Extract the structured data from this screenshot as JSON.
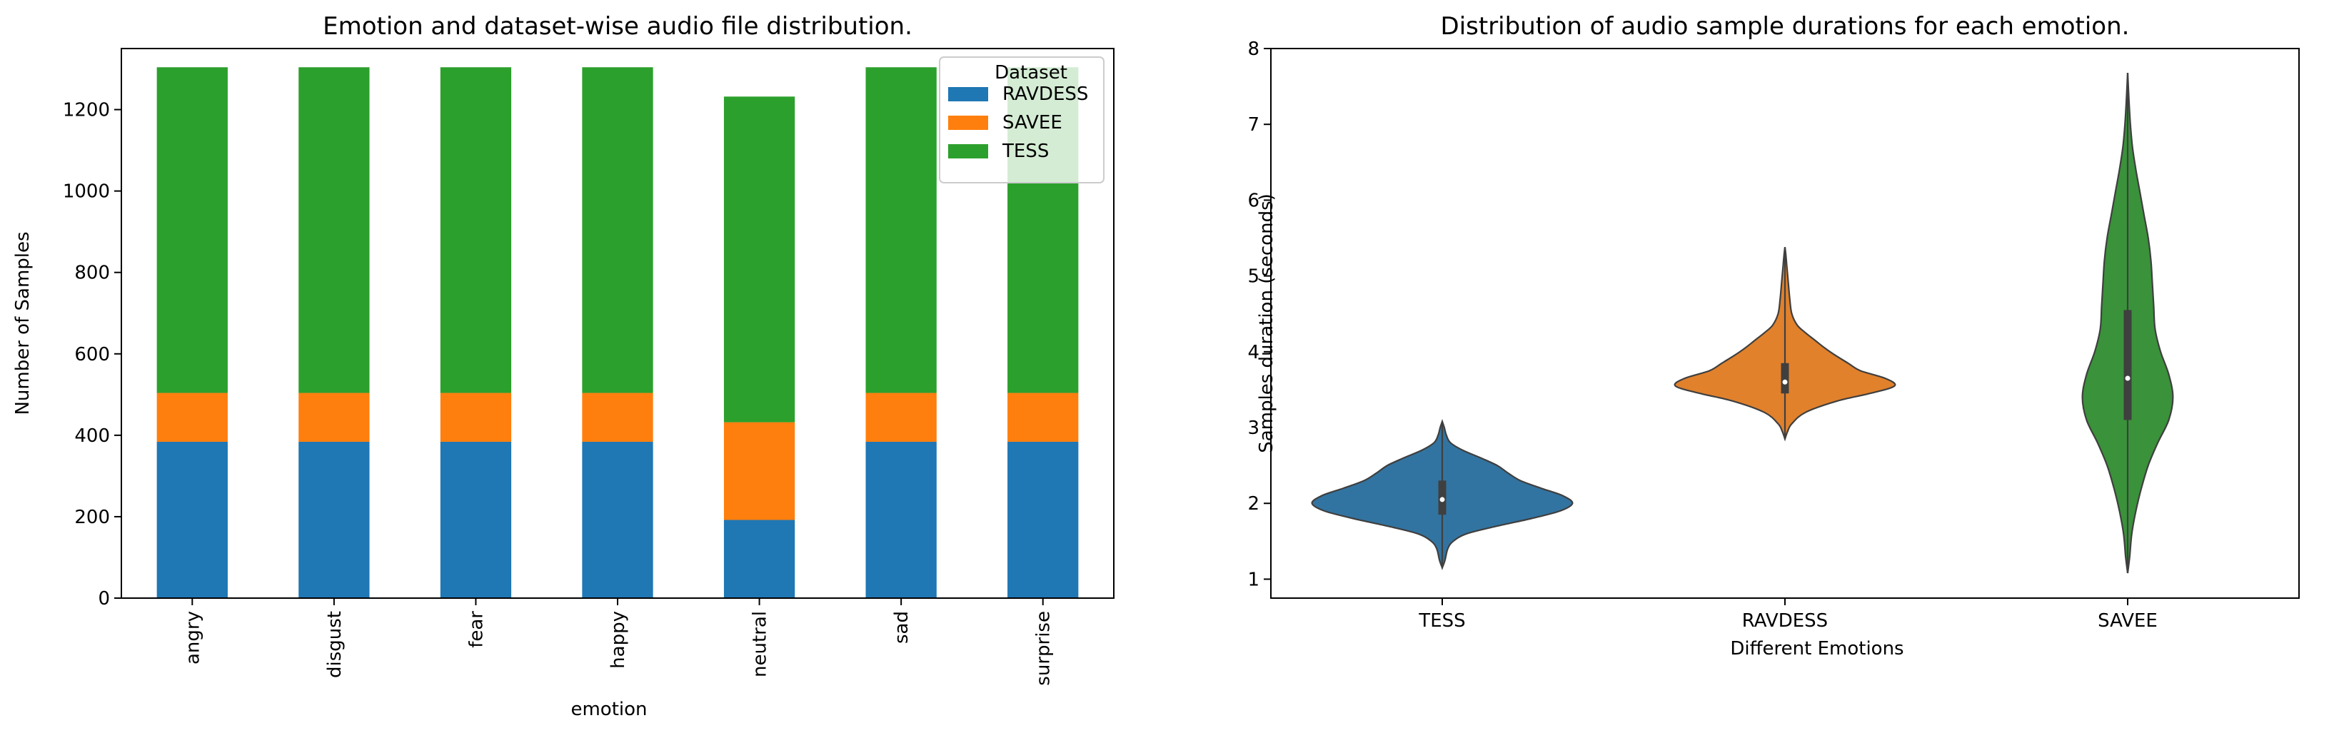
{
  "chart_data": [
    {
      "type": "bar",
      "stacked": true,
      "title": "Emotion and dataset-wise audio file distribution.",
      "xlabel": "emotion",
      "ylabel": "Number of Samples",
      "ylim": [
        0,
        1350
      ],
      "yticks": [
        0,
        200,
        400,
        600,
        800,
        1000,
        1200
      ],
      "grid": false,
      "legend_title": "Dataset",
      "legend_position": "top-right",
      "categories": [
        "angry",
        "disgust",
        "fear",
        "happy",
        "neutral",
        "sad",
        "surprise"
      ],
      "series": [
        {
          "name": "RAVDESS",
          "color": "#1f77b4",
          "values": [
            384,
            384,
            384,
            384,
            192,
            384,
            384
          ]
        },
        {
          "name": "SAVEE",
          "color": "#ff7f0e",
          "values": [
            120,
            120,
            120,
            120,
            240,
            120,
            120
          ]
        },
        {
          "name": "TESS",
          "color": "#2ca02c",
          "values": [
            800,
            800,
            800,
            800,
            800,
            800,
            800
          ]
        }
      ]
    },
    {
      "type": "violin",
      "title": "Distribution of audio sample durations for each emotion.",
      "xlabel": "Different Emotions",
      "ylabel": "Samples duration (seconds)",
      "ylim": [
        0.75,
        8.0
      ],
      "yticks": [
        1,
        2,
        3,
        4,
        5,
        6,
        7,
        8
      ],
      "grid": false,
      "categories": [
        "TESS",
        "RAVDESS",
        "SAVEE"
      ],
      "violins": [
        {
          "name": "TESS",
          "color": "#3274a1",
          "min": 1.15,
          "max": 3.08,
          "q1": 1.85,
          "median": 2.05,
          "q3": 2.3,
          "profile": [
            [
              1.15,
              0.0
            ],
            [
              1.25,
              0.02
            ],
            [
              1.4,
              0.04
            ],
            [
              1.5,
              0.08
            ],
            [
              1.6,
              0.18
            ],
            [
              1.7,
              0.4
            ],
            [
              1.8,
              0.65
            ],
            [
              1.9,
              0.86
            ],
            [
              2.0,
              0.95
            ],
            [
              2.1,
              0.88
            ],
            [
              2.2,
              0.72
            ],
            [
              2.3,
              0.57
            ],
            [
              2.4,
              0.48
            ],
            [
              2.5,
              0.4
            ],
            [
              2.6,
              0.28
            ],
            [
              2.7,
              0.15
            ],
            [
              2.8,
              0.06
            ],
            [
              2.9,
              0.03
            ],
            [
              3.0,
              0.015
            ],
            [
              3.08,
              0.0
            ]
          ]
        },
        {
          "name": "RAVDESS",
          "color": "#e1812c",
          "min": 2.85,
          "max": 5.38,
          "q1": 3.45,
          "median": 3.6,
          "q3": 3.85,
          "profile": [
            [
              2.85,
              0.0
            ],
            [
              2.95,
              0.02
            ],
            [
              3.05,
              0.05
            ],
            [
              3.2,
              0.15
            ],
            [
              3.35,
              0.38
            ],
            [
              3.45,
              0.62
            ],
            [
              3.55,
              0.8
            ],
            [
              3.65,
              0.73
            ],
            [
              3.75,
              0.55
            ],
            [
              3.85,
              0.46
            ],
            [
              3.95,
              0.37
            ],
            [
              4.05,
              0.29
            ],
            [
              4.15,
              0.22
            ],
            [
              4.25,
              0.15
            ],
            [
              4.35,
              0.09
            ],
            [
              4.5,
              0.05
            ],
            [
              4.7,
              0.035
            ],
            [
              4.9,
              0.025
            ],
            [
              5.1,
              0.015
            ],
            [
              5.25,
              0.008
            ],
            [
              5.38,
              0.0
            ]
          ]
        },
        {
          "name": "SAVEE",
          "color": "#3a923a",
          "min": 1.08,
          "max": 7.68,
          "q1": 3.1,
          "median": 3.65,
          "q3": 4.55,
          "profile": [
            [
              1.08,
              0.0
            ],
            [
              1.3,
              0.015
            ],
            [
              1.6,
              0.03
            ],
            [
              1.9,
              0.06
            ],
            [
              2.2,
              0.1
            ],
            [
              2.5,
              0.15
            ],
            [
              2.8,
              0.22
            ],
            [
              3.1,
              0.3
            ],
            [
              3.4,
              0.33
            ],
            [
              3.7,
              0.3
            ],
            [
              4.0,
              0.24
            ],
            [
              4.3,
              0.2
            ],
            [
              4.6,
              0.19
            ],
            [
              4.9,
              0.18
            ],
            [
              5.2,
              0.17
            ],
            [
              5.5,
              0.15
            ],
            [
              5.8,
              0.12
            ],
            [
              6.1,
              0.09
            ],
            [
              6.4,
              0.06
            ],
            [
              6.7,
              0.035
            ],
            [
              7.0,
              0.02
            ],
            [
              7.3,
              0.01
            ],
            [
              7.68,
              0.0
            ]
          ]
        }
      ]
    }
  ]
}
